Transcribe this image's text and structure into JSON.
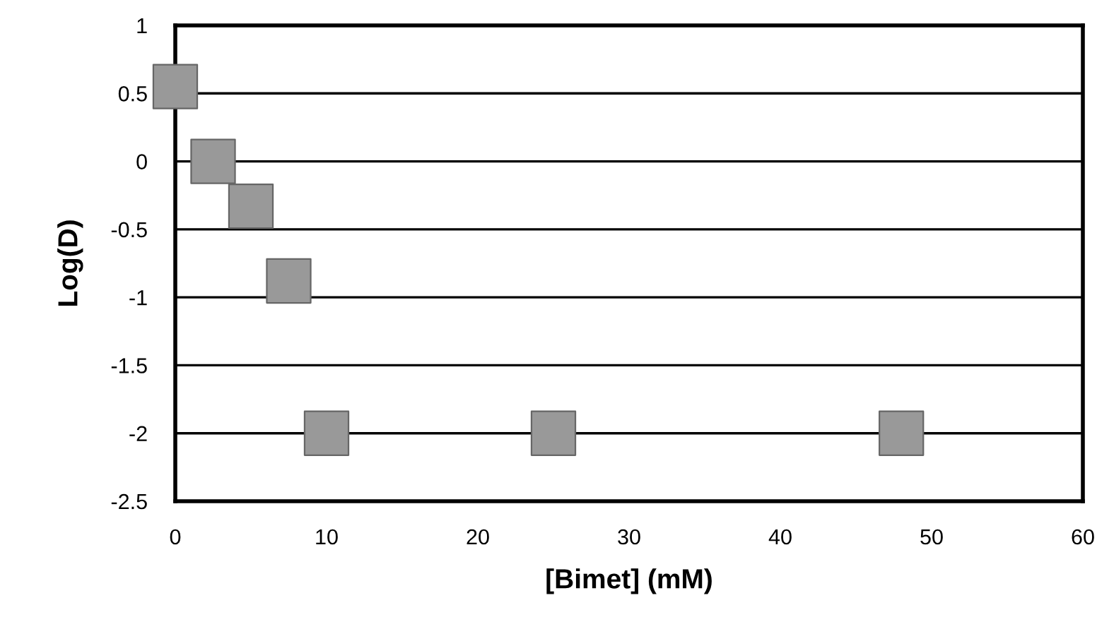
{
  "chart_data": {
    "type": "scatter",
    "xlabel": "[Bimet] (mM)",
    "ylabel": "Log(D)",
    "series": [
      {
        "color": "#999999",
        "x": [
          0,
          2.5,
          5,
          7.5,
          10,
          25,
          48
        ],
        "values": [
          0.55,
          0,
          -0.33,
          -0.88,
          -2,
          -2,
          -2
        ]
      }
    ],
    "xlim": [
      0,
      60
    ],
    "xticks": [
      0,
      10,
      20,
      30,
      40,
      50,
      60
    ],
    "ylim": [
      -2.5,
      1
    ],
    "yticks": [
      -2.5,
      -2,
      -1.5,
      -1,
      -0.5,
      0,
      0.5,
      1
    ],
    "grid": "y",
    "marker": "square",
    "legend": false
  }
}
